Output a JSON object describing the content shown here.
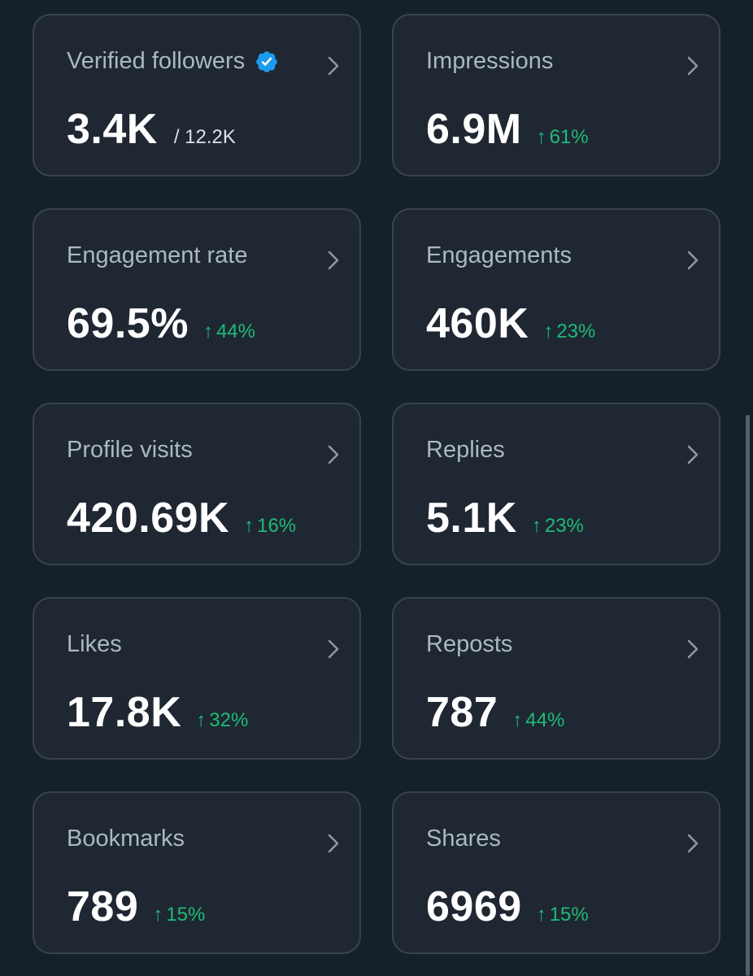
{
  "colors": {
    "background": "#15202b",
    "card_background": "#1e2732",
    "card_border": "#38444d",
    "trend_up": "#1fbb77",
    "verified_badge": "#1d9bf0"
  },
  "cards": [
    {
      "title": "Verified followers",
      "value": "3.4K",
      "secondary": "/ 12.2K",
      "trend": "",
      "icon": "verified-badge-icon"
    },
    {
      "title": "Impressions",
      "value": "6.9M",
      "secondary": "",
      "trend": "61%",
      "trend_direction": "up"
    },
    {
      "title": "Engagement rate",
      "value": "69.5%",
      "secondary": "",
      "trend": "44%",
      "trend_direction": "up"
    },
    {
      "title": "Engagements",
      "value": "460K",
      "secondary": "",
      "trend": "23%",
      "trend_direction": "up"
    },
    {
      "title": "Profile visits",
      "value": "420.69K",
      "secondary": "",
      "trend": "16%",
      "trend_direction": "up"
    },
    {
      "title": "Replies",
      "value": "5.1K",
      "secondary": "",
      "trend": "23%",
      "trend_direction": "up"
    },
    {
      "title": "Likes",
      "value": "17.8K",
      "secondary": "",
      "trend": "32%",
      "trend_direction": "up"
    },
    {
      "title": "Reposts",
      "value": "787",
      "secondary": "",
      "trend": "44%",
      "trend_direction": "up"
    },
    {
      "title": "Bookmarks",
      "value": "789",
      "secondary": "",
      "trend": "15%",
      "trend_direction": "up"
    },
    {
      "title": "Shares",
      "value": "6969",
      "secondary": "",
      "trend": "15%",
      "trend_direction": "up"
    }
  ],
  "trend_arrow_glyph": "↑"
}
